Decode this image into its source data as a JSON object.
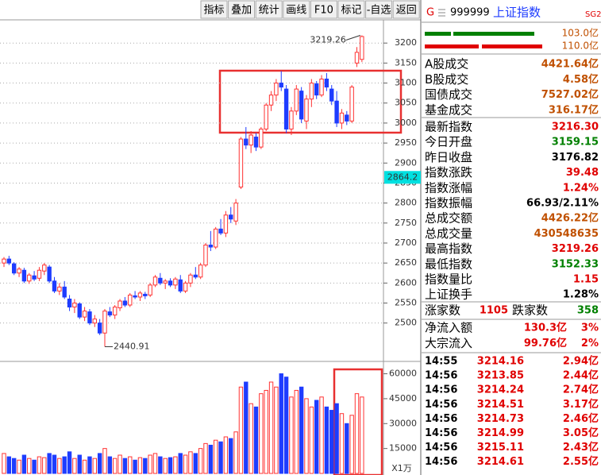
{
  "toolbar": [
    "指标",
    "叠加",
    "统计",
    "画线",
    "F10",
    "标记",
    "-自选",
    "返回"
  ],
  "chart": {
    "type": "candlestick",
    "ylim": [
      2410,
      3258
    ],
    "yticks": [
      3200,
      3150,
      3100,
      3050,
      3000,
      2950,
      2900,
      2850,
      2800,
      2750,
      2700,
      2650,
      2600,
      2550,
      2500
    ],
    "up_color": "#ff3232",
    "down_color": "#1e3cff",
    "cursor_value": 2864.2,
    "high_index": 71,
    "low_index": 20,
    "ohlc": [
      [
        2650,
        2665,
        2640,
        2660
      ],
      [
        2660,
        2668,
        2645,
        2650
      ],
      [
        2648,
        2652,
        2620,
        2625
      ],
      [
        2625,
        2640,
        2615,
        2635
      ],
      [
        2632,
        2638,
        2600,
        2605
      ],
      [
        2605,
        2625,
        2598,
        2620
      ],
      [
        2618,
        2630,
        2605,
        2610
      ],
      [
        2612,
        2640,
        2605,
        2632
      ],
      [
        2630,
        2650,
        2620,
        2645
      ],
      [
        2640,
        2645,
        2600,
        2605
      ],
      [
        2605,
        2615,
        2575,
        2580
      ],
      [
        2580,
        2600,
        2570,
        2590
      ],
      [
        2590,
        2605,
        2560,
        2565
      ],
      [
        2560,
        2570,
        2530,
        2540
      ],
      [
        2540,
        2560,
        2525,
        2550
      ],
      [
        2548,
        2552,
        2510,
        2515
      ],
      [
        2515,
        2540,
        2505,
        2530
      ],
      [
        2528,
        2535,
        2495,
        2500
      ],
      [
        2500,
        2520,
        2490,
        2510
      ],
      [
        2500,
        2510,
        2470,
        2475
      ],
      [
        2475,
        2535,
        2440.91,
        2530
      ],
      [
        2528,
        2540,
        2515,
        2520
      ],
      [
        2520,
        2545,
        2510,
        2540
      ],
      [
        2538,
        2560,
        2530,
        2555
      ],
      [
        2555,
        2565,
        2540,
        2545
      ],
      [
        2545,
        2575,
        2540,
        2570
      ],
      [
        2568,
        2580,
        2560,
        2565
      ],
      [
        2565,
        2580,
        2555,
        2575
      ],
      [
        2572,
        2578,
        2560,
        2568
      ],
      [
        2570,
        2600,
        2565,
        2595
      ],
      [
        2595,
        2620,
        2590,
        2615
      ],
      [
        2612,
        2625,
        2595,
        2600
      ],
      [
        2600,
        2610,
        2585,
        2605
      ],
      [
        2605,
        2612,
        2590,
        2595
      ],
      [
        2595,
        2615,
        2585,
        2610
      ],
      [
        2608,
        2620,
        2575,
        2580
      ],
      [
        2580,
        2605,
        2575,
        2600
      ],
      [
        2600,
        2625,
        2590,
        2620
      ],
      [
        2620,
        2640,
        2610,
        2615
      ],
      [
        2615,
        2650,
        2610,
        2645
      ],
      [
        2645,
        2700,
        2640,
        2695
      ],
      [
        2695,
        2730,
        2680,
        2690
      ],
      [
        2690,
        2740,
        2685,
        2735
      ],
      [
        2735,
        2760,
        2720,
        2725
      ],
      [
        2725,
        2780,
        2715,
        2770
      ],
      [
        2770,
        2790,
        2750,
        2760
      ],
      [
        2755,
        2810,
        2745,
        2800
      ],
      [
        2840,
        2965,
        2835,
        2960
      ],
      [
        2960,
        2990,
        2935,
        2945
      ],
      [
        2945,
        2980,
        2925,
        2970
      ],
      [
        2965,
        2975,
        2930,
        2940
      ],
      [
        2940,
        2990,
        2935,
        2985
      ],
      [
        2985,
        3050,
        2980,
        3045
      ],
      [
        3045,
        3080,
        3030,
        3070
      ],
      [
        3070,
        3110,
        3055,
        3100
      ],
      [
        3100,
        3130,
        3080,
        3090
      ],
      [
        3085,
        3095,
        2975,
        2985
      ],
      [
        2985,
        3040,
        2970,
        3030
      ],
      [
        3030,
        3095,
        3020,
        3085
      ],
      [
        3080,
        3090,
        3000,
        3010
      ],
      [
        3005,
        3070,
        2985,
        3060
      ],
      [
        3060,
        3110,
        3040,
        3100
      ],
      [
        3098,
        3105,
        3060,
        3070
      ],
      [
        3070,
        3120,
        3065,
        3110
      ],
      [
        3110,
        3125,
        3080,
        3090
      ],
      [
        3085,
        3095,
        3045,
        3055
      ],
      [
        3055,
        3080,
        2990,
        3000
      ],
      [
        3000,
        3035,
        2985,
        3025
      ],
      [
        3020,
        3030,
        2995,
        3005
      ],
      [
        3005,
        3095,
        3000,
        3090
      ],
      [
        3150,
        3190,
        3140,
        3176.82
      ],
      [
        3159.15,
        3219.26,
        3152.33,
        3216.3
      ]
    ],
    "volume": {
      "ylim": [
        0,
        66000
      ],
      "yticks": [
        60000,
        45000,
        30000,
        15000
      ],
      "unit": "X1万",
      "values": [
        12000,
        10000,
        9000,
        8000,
        11000,
        9000,
        8000,
        10000,
        9500,
        12000,
        11000,
        9000,
        10000,
        13000,
        9000,
        11000,
        8000,
        10000,
        9000,
        12000,
        15000,
        10000,
        9000,
        11000,
        9000,
        10000,
        8000,
        9500,
        9000,
        11000,
        12000,
        10000,
        9000,
        9500,
        10000,
        12000,
        11000,
        13000,
        12000,
        15000,
        18000,
        17000,
        20000,
        19000,
        22000,
        21000,
        25000,
        52000,
        55000,
        42000,
        40000,
        48000,
        50000,
        55000,
        52000,
        60000,
        58000,
        46000,
        50000,
        52000,
        45000,
        40000,
        44000,
        46000,
        40000,
        38000,
        42000,
        36000,
        30000,
        35000,
        48000,
        46000
      ]
    }
  },
  "quote": {
    "prefix": "G",
    "code": "999999",
    "name": "上证指数",
    "tag": "SG2",
    "bars": [
      "103.0亿",
      "110.0亿"
    ],
    "turnover": [
      [
        "A股成交",
        "4421.64亿"
      ],
      [
        "B股成交",
        "4.58亿"
      ],
      [
        "国债成交",
        "7527.02亿"
      ],
      [
        "基金成交",
        "316.17亿"
      ]
    ],
    "stats": [
      [
        "最新指数",
        "3216.30",
        "#e00000"
      ],
      [
        "今日开盘",
        "3159.15",
        "#008000"
      ],
      [
        "昨日收盘",
        "3176.82",
        "#000000"
      ],
      [
        "指数涨跌",
        "39.48",
        "#e00000"
      ],
      [
        "指数涨幅",
        "1.24%",
        "#e00000"
      ],
      [
        "指数振幅",
        "66.93/2.11%",
        "#000000"
      ],
      [
        "总成交额",
        "4426.22亿",
        "#c05000"
      ],
      [
        "总成交量",
        "430548635",
        "#c05000"
      ],
      [
        "最高指数",
        "3219.26",
        "#e00000"
      ],
      [
        "最低指数",
        "3152.33",
        "#008000"
      ],
      [
        "指数量比",
        "1.15",
        "#e00000"
      ],
      [
        "上证换手",
        "1.28%",
        "#000000"
      ]
    ],
    "breadth": {
      "up_label": "涨家数",
      "up": 1105,
      "down_label": "跌家数",
      "down": 358
    },
    "flows": [
      [
        "净流入额",
        "130.3亿",
        "3%"
      ],
      [
        "大宗流入",
        "99.76亿",
        "2%"
      ]
    ],
    "ticks": [
      [
        "14:55",
        "3214.16",
        "2.94亿"
      ],
      [
        "14:56",
        "3213.85",
        "2.44亿"
      ],
      [
        "14:56",
        "3214.24",
        "2.74亿"
      ],
      [
        "14:56",
        "3214.51",
        "3.17亿"
      ],
      [
        "14:56",
        "3214.73",
        "2.46亿"
      ],
      [
        "14:56",
        "3214.99",
        "3.05亿"
      ],
      [
        "14:56",
        "3215.11",
        "2.43亿"
      ],
      [
        "14:56",
        "3214.61",
        "2.55亿"
      ]
    ]
  }
}
